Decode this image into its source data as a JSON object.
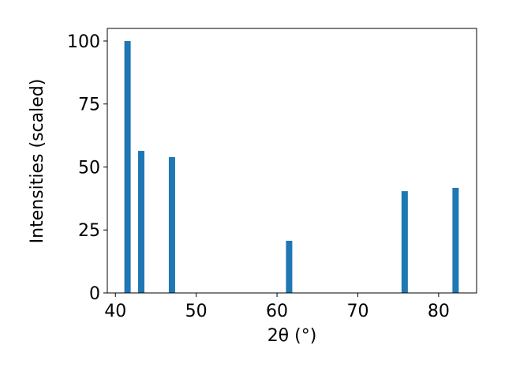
{
  "chart_data": {
    "type": "bar",
    "x_label": "2θ (°)",
    "y_label": "Intensities (scaled)",
    "x": [
      41.5,
      43.2,
      47.0,
      61.5,
      75.8,
      82.1
    ],
    "values": [
      100,
      56.4,
      53.9,
      20.7,
      40.4,
      41.7
    ],
    "color": "#1f77b4",
    "xlim": [
      39.0,
      84.7
    ],
    "ylim": [
      0,
      105
    ],
    "xticks": [
      40,
      50,
      60,
      70,
      80
    ],
    "yticks": [
      0,
      25,
      50,
      75,
      100
    ],
    "grid": false
  }
}
